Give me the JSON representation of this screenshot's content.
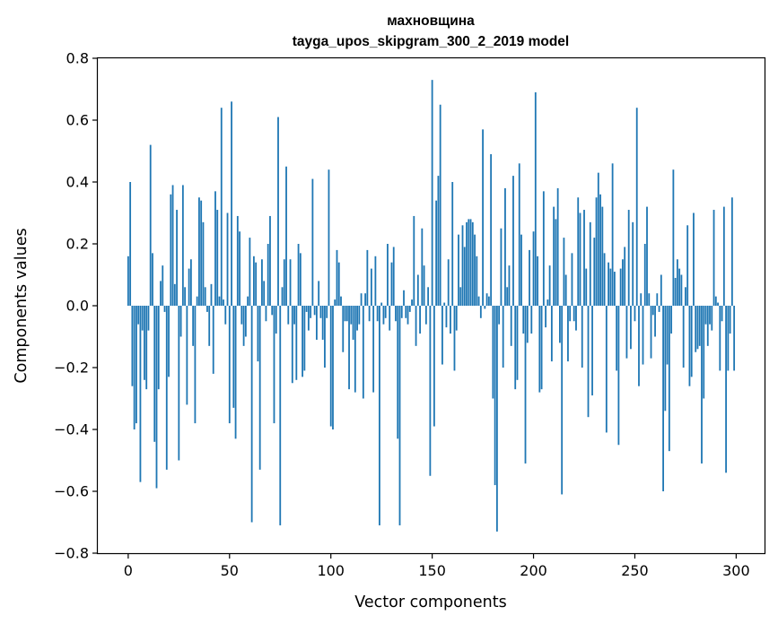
{
  "chart_data": {
    "type": "bar",
    "title": "махновщина",
    "subtitle": "tayga_upos_skipgram_300_2_2019 model",
    "xlabel": "Vector components",
    "ylabel": "Components values",
    "xlim": [
      -15,
      314
    ],
    "ylim": [
      -0.8,
      0.8
    ],
    "x_ticks": [
      0,
      50,
      100,
      150,
      200,
      250,
      300
    ],
    "y_ticks": [
      -0.8,
      -0.6,
      -0.4,
      -0.2,
      0.0,
      0.2,
      0.4,
      0.6,
      0.8
    ],
    "y_tick_labels": [
      "−0.8",
      "−0.6",
      "−0.4",
      "−0.2",
      "0.0",
      "0.2",
      "0.4",
      "0.6",
      "0.8"
    ],
    "bar_color": "#1f77b4",
    "series": [
      {
        "name": "components",
        "values": [
          0.16,
          0.4,
          -0.26,
          -0.4,
          -0.38,
          -0.06,
          -0.57,
          -0.08,
          -0.24,
          -0.27,
          -0.08,
          0.52,
          0.17,
          -0.44,
          -0.59,
          -0.27,
          0.08,
          0.13,
          -0.02,
          -0.53,
          -0.23,
          0.36,
          0.39,
          0.07,
          0.31,
          -0.5,
          -0.1,
          0.39,
          0.06,
          -0.32,
          0.12,
          0.15,
          -0.13,
          -0.38,
          0.03,
          0.35,
          0.34,
          0.27,
          0.06,
          -0.02,
          -0.13,
          0.07,
          -0.22,
          0.37,
          0.31,
          0.03,
          0.64,
          0.02,
          -0.06,
          0.3,
          -0.38,
          0.66,
          -0.33,
          -0.43,
          0.29,
          0.24,
          -0.06,
          -0.13,
          -0.1,
          0.03,
          0.22,
          -0.7,
          0.16,
          0.14,
          -0.18,
          -0.53,
          0.15,
          0.08,
          -0.05,
          0.2,
          0.29,
          -0.03,
          -0.38,
          -0.09,
          0.61,
          -0.71,
          0.06,
          0.15,
          0.45,
          -0.06,
          0.15,
          -0.25,
          -0.06,
          -0.24,
          0.2,
          0.17,
          -0.23,
          -0.21,
          -0.02,
          -0.08,
          -0.04,
          0.41,
          -0.03,
          -0.11,
          0.08,
          -0.04,
          -0.11,
          -0.2,
          -0.04,
          0.44,
          -0.39,
          -0.4,
          0.02,
          0.18,
          0.14,
          0.03,
          -0.15,
          -0.05,
          -0.05,
          -0.27,
          -0.06,
          -0.11,
          -0.28,
          -0.08,
          -0.06,
          0.04,
          -0.3,
          0.04,
          0.18,
          -0.05,
          0.12,
          -0.28,
          0.16,
          -0.05,
          -0.71,
          0.01,
          -0.06,
          -0.04,
          0.2,
          -0.08,
          0.14,
          0.19,
          -0.05,
          -0.43,
          -0.71,
          -0.04,
          0.05,
          -0.04,
          -0.06,
          -0.02,
          0.02,
          0.29,
          -0.13,
          0.1,
          -0.09,
          0.25,
          0.13,
          -0.06,
          0.06,
          -0.55,
          0.73,
          -0.39,
          0.34,
          0.42,
          0.65,
          -0.19,
          0.01,
          -0.07,
          0.15,
          -0.09,
          0.4,
          -0.21,
          -0.08,
          0.23,
          0.06,
          0.26,
          0.19,
          0.27,
          0.28,
          0.28,
          0.27,
          0.23,
          0.16,
          0.03,
          -0.04,
          0.57,
          -0.01,
          0.04,
          0.03,
          0.49,
          -0.3,
          -0.58,
          -0.73,
          -0.06,
          0.25,
          -0.2,
          0.38,
          0.06,
          0.13,
          -0.13,
          0.42,
          -0.27,
          -0.24,
          0.46,
          0.23,
          -0.09,
          -0.51,
          -0.12,
          0.18,
          -0.09,
          0.24,
          0.69,
          0.16,
          -0.28,
          -0.27,
          0.37,
          -0.07,
          0.02,
          0.13,
          -0.18,
          0.32,
          0.28,
          0.38,
          -0.12,
          -0.61,
          0.22,
          0.1,
          -0.18,
          -0.05,
          0.17,
          -0.05,
          -0.08,
          0.35,
          0.3,
          -0.2,
          0.31,
          0.12,
          -0.36,
          0.27,
          -0.29,
          0.22,
          0.35,
          0.43,
          0.36,
          0.32,
          0.17,
          -0.41,
          0.14,
          0.12,
          0.46,
          0.11,
          -0.21,
          -0.45,
          0.12,
          0.15,
          0.19,
          -0.17,
          0.31,
          -0.14,
          0.27,
          -0.05,
          0.64,
          -0.26,
          0.04,
          -0.19,
          0.2,
          0.32,
          0.04,
          -0.17,
          -0.03,
          -0.1,
          0.04,
          -0.02,
          0.1,
          -0.6,
          -0.34,
          -0.19,
          -0.47,
          -0.09,
          0.44,
          0.09,
          0.15,
          0.12,
          0.1,
          -0.2,
          0.06,
          0.26,
          -0.26,
          -0.23,
          0.3,
          -0.15,
          -0.14,
          -0.13,
          -0.51,
          -0.3,
          -0.06,
          -0.13,
          -0.06,
          -0.08,
          0.31,
          0.03,
          0.01,
          -0.21,
          -0.05,
          0.32,
          -0.54,
          -0.21,
          -0.09,
          0.35,
          -0.21
        ]
      }
    ]
  }
}
